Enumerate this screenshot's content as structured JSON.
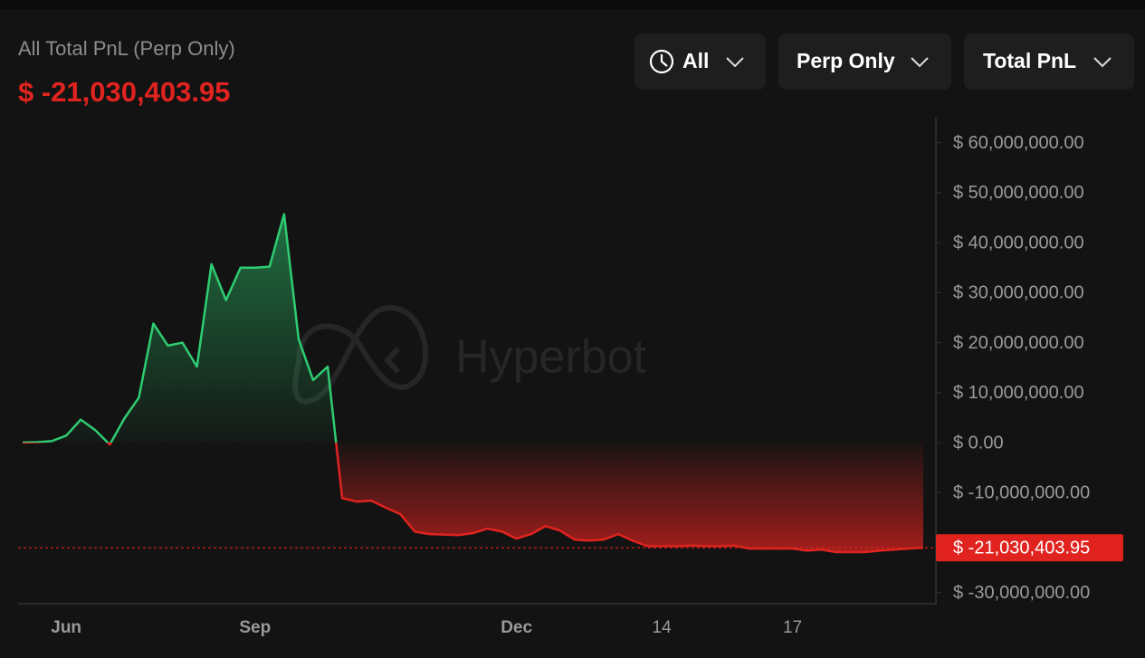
{
  "controls": [
    "All",
    "Perp Only",
    "Total PnL"
  ],
  "chart_data": {
    "type": "line",
    "title": "All Total PnL (Perp Only)",
    "watermark": "Hyperbot",
    "categories": [
      null,
      null,
      null,
      "Jun",
      null,
      null,
      null,
      null,
      null,
      null,
      null,
      null,
      null,
      null,
      null,
      null,
      "Sep",
      null,
      null,
      null,
      null,
      null,
      null,
      null,
      null,
      null,
      null,
      null,
      null,
      null,
      null,
      null,
      null,
      null,
      "Dec",
      null,
      null,
      null,
      null,
      null,
      null,
      null,
      null,
      null,
      "14",
      null,
      null,
      null,
      null,
      null,
      null,
      null,
      null,
      "17",
      null,
      null,
      null,
      null,
      null,
      null,
      null,
      null,
      null
    ],
    "series": [
      {
        "values": [
          0,
          100000,
          300000,
          1400000,
          4600000,
          2500000,
          -400000,
          4800000,
          9000000,
          23800000,
          19400000,
          20000000,
          15200000,
          35700000,
          28500000,
          35000000,
          35000000,
          35200000,
          45700000,
          20700000,
          12500000,
          15200000,
          -11100000,
          -11800000,
          -11600000,
          -13000000,
          -14300000,
          -17800000,
          -18300000,
          -18400000,
          -18500000,
          -18100000,
          -17200000,
          -17800000,
          -19200000,
          -18300000,
          -16700000,
          -17600000,
          -19400000,
          -19600000,
          -19400000,
          -18300000,
          -19600000,
          -20700000,
          -20700000,
          -20700000,
          -20600000,
          -20700000,
          -20700000,
          -20600000,
          -21200000,
          -21200000,
          -21200000,
          -21200000,
          -21600000,
          -21400000,
          -21900000,
          -21900000,
          -21900000,
          -21600000,
          -21400000,
          -21200000,
          -21030403.95
        ],
        "value_labels": [
          null,
          null,
          null,
          null,
          null,
          null,
          null,
          null,
          null,
          null,
          null,
          null,
          null,
          null,
          null,
          null,
          null,
          null,
          null,
          null,
          null,
          null,
          null,
          null,
          null,
          null,
          null,
          null,
          null,
          null,
          null,
          null,
          null,
          null,
          null,
          null,
          null,
          null,
          null,
          null,
          null,
          null,
          null,
          null,
          null,
          null,
          null,
          null,
          null,
          null,
          null,
          null,
          null,
          null,
          null,
          null,
          null,
          null,
          null,
          null,
          null,
          null,
          "$ -21,030,403.95"
        ]
      }
    ],
    "colors": {
      "positive": "#2ecc71",
      "negative": "#e0231f"
    },
    "ylim": [
      -32400000,
      65000000
    ],
    "yticks": [
      {
        "value": -30000000,
        "label": "$ -30,000,000.00"
      },
      {
        "value": -10000000,
        "label": "$ -10,000,000.00"
      },
      {
        "value": 0,
        "label": "$ 0.00"
      },
      {
        "value": 10000000,
        "label": "$ 10,000,000.00"
      },
      {
        "value": 20000000,
        "label": "$ 20,000,000.00"
      },
      {
        "value": 30000000,
        "label": "$ 30,000,000.00"
      },
      {
        "value": 40000000,
        "label": "$ 40,000,000.00"
      },
      {
        "value": 50000000,
        "label": "$ 50,000,000.00"
      },
      {
        "value": 60000000,
        "label": "$ 60,000,000.00"
      }
    ]
  }
}
